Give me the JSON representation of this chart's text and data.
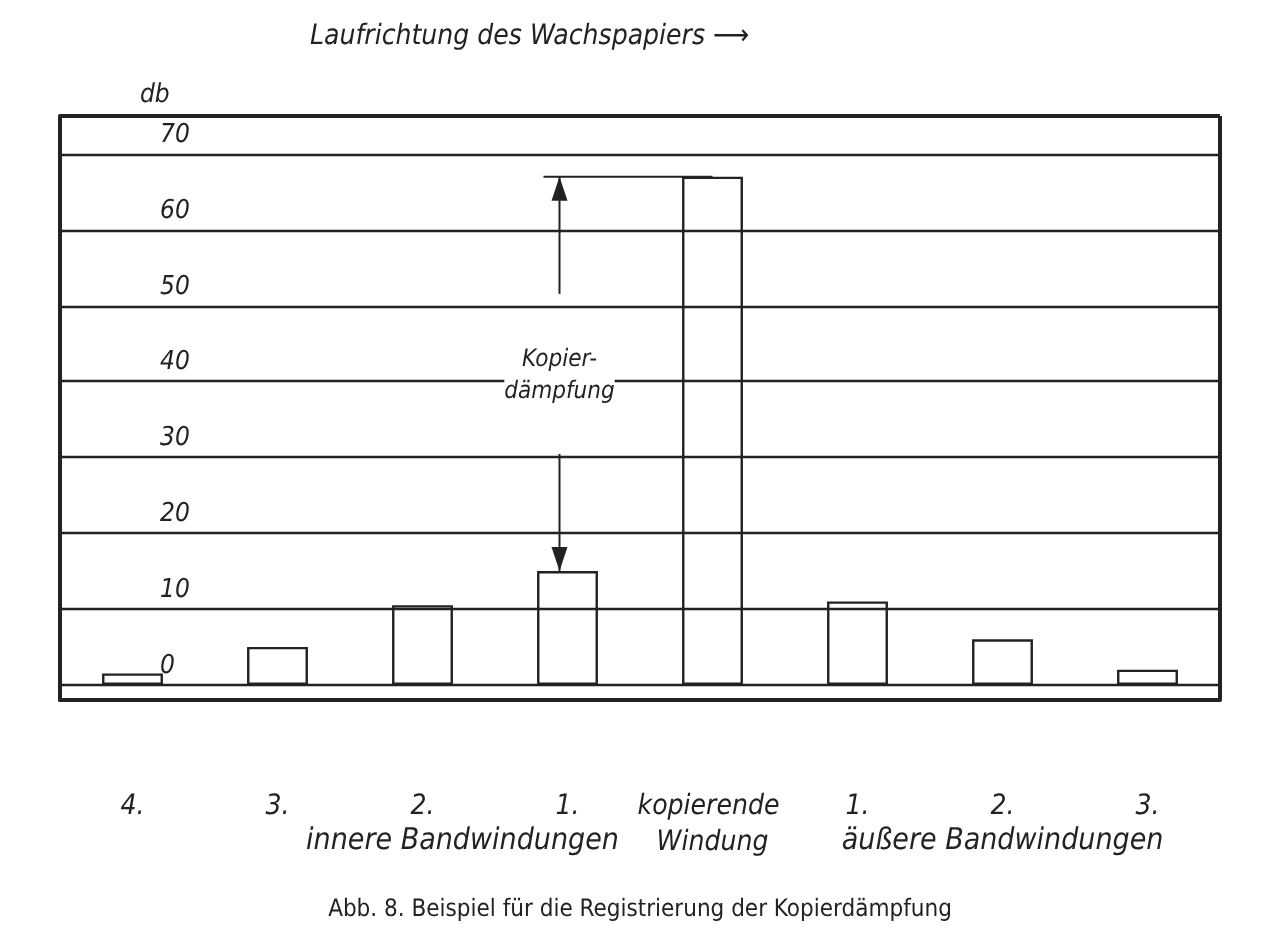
{
  "chart_data": {
    "type": "bar",
    "title": "Laufrichtung des Wachspapiers ⟶",
    "ylabel": "db",
    "categories": [
      "4.",
      "3.",
      "2.",
      "1.",
      "kopierende Windung",
      "1.",
      "2.",
      "3."
    ],
    "values": [
      1.5,
      5,
      10.5,
      15,
      67,
      11,
      6,
      2
    ],
    "color": "#222222",
    "ylim": [
      -2,
      75
    ],
    "yticks": [
      0,
      10,
      20,
      30,
      40,
      50,
      60,
      70
    ],
    "grid": "y",
    "annotations": [
      "Kopier-dämpfung",
      "innere Bandwindungen",
      "äußere Bandwindungen",
      "Abb. 8. Beispiel für die Registrierung der Kopierdämpfung"
    ]
  }
}
